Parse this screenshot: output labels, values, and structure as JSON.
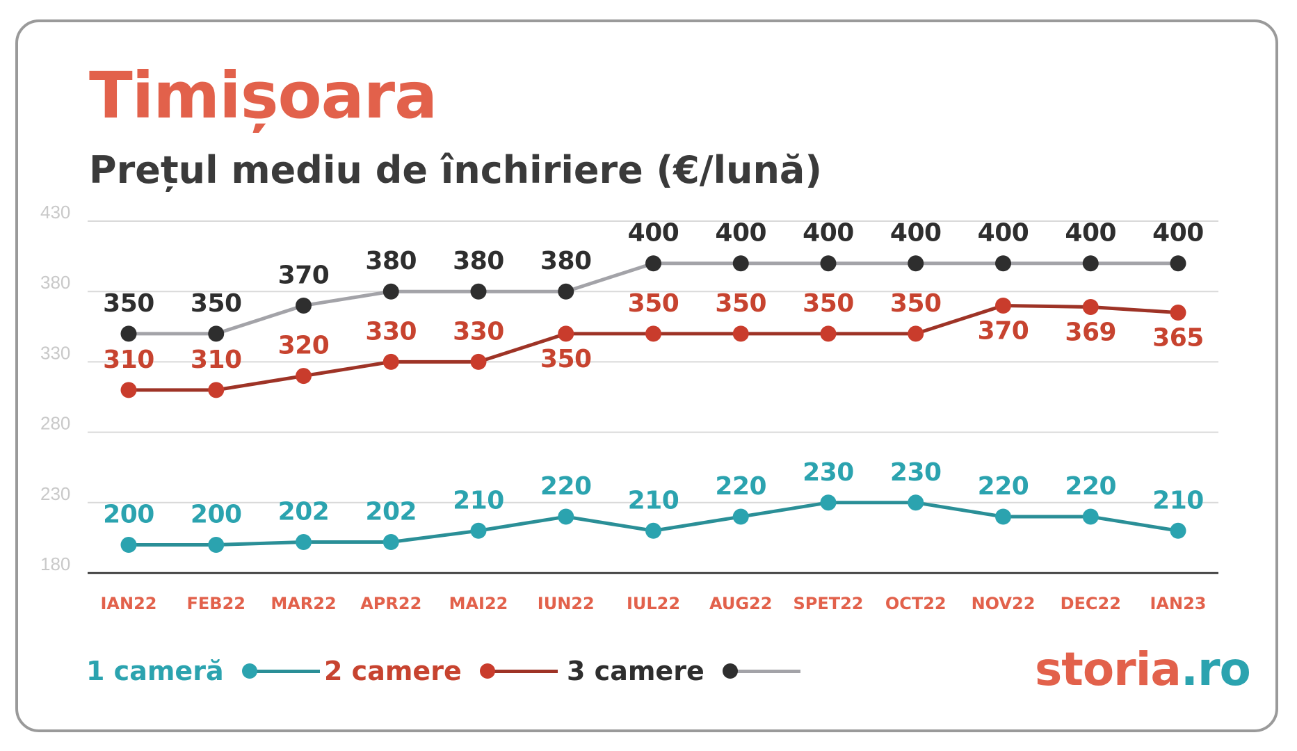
{
  "title": "Timișoara",
  "subtitle": "Prețul mediu de închiriere (€/lună)",
  "brand": {
    "part1": "storia",
    "part2": ".ro",
    "color1": "#e2614b",
    "color2": "#2ba3af"
  },
  "legend": [
    {
      "label": "1 cameră",
      "text_color": "#2ba3af",
      "line_color": "#2a8f97",
      "dot_color": "#2ba3af"
    },
    {
      "label": "2 camere",
      "text_color": "#c7432f",
      "line_color": "#9e3326",
      "dot_color": "#c93c2c"
    },
    {
      "label": "3 camere",
      "text_color": "#2e2e2e",
      "line_color": "#a3a3a8",
      "dot_color": "#2e2e2e"
    }
  ],
  "chart_data": {
    "type": "line",
    "categories": [
      "IAN22",
      "FEB22",
      "MAR22",
      "APR22",
      "MAI22",
      "IUN22",
      "IUL22",
      "AUG22",
      "SPET22",
      "OCT22",
      "NOV22",
      "DEC22",
      "IAN23"
    ],
    "yticks": [
      430,
      380,
      330,
      280,
      230,
      180
    ],
    "ylim": [
      180,
      430
    ],
    "grid": true,
    "legend_position": "bottom-left",
    "series": [
      {
        "name": "1 cameră",
        "line_color": "#2a8f97",
        "marker_color": "#2ba3af",
        "label_color": "#2ba3af",
        "label_position": "above",
        "values": [
          200,
          200,
          202,
          202,
          210,
          220,
          210,
          220,
          230,
          230,
          220,
          220,
          210
        ],
        "labels": [
          "200",
          "200",
          "202",
          "202",
          "210",
          "220",
          "210",
          "220",
          "230",
          "230",
          "220",
          "220",
          "210"
        ]
      },
      {
        "name": "2 camere",
        "line_color": "#9e3326",
        "marker_color": "#c93c2c",
        "label_color": "#c7432f",
        "values": [
          310,
          310,
          320,
          330,
          330,
          350,
          350,
          350,
          350,
          350,
          370,
          369,
          365
        ],
        "labels": [
          "310",
          "310",
          "320",
          "330",
          "330",
          "350",
          "350",
          "350",
          "350",
          "350",
          "370",
          "369",
          "365"
        ],
        "label_sides": [
          "above",
          "above",
          "above",
          "above",
          "above",
          "below",
          "above",
          "above",
          "above",
          "above",
          "below",
          "below",
          "below"
        ]
      },
      {
        "name": "3 camere",
        "line_color": "#a3a3a8",
        "marker_color": "#2e2e2e",
        "label_color": "#2e2e2e",
        "label_position": "above",
        "values": [
          350,
          350,
          370,
          380,
          380,
          380,
          400,
          400,
          400,
          400,
          400,
          400,
          400
        ],
        "labels": [
          "350",
          "350",
          "370",
          "380",
          "380",
          "380",
          "400",
          "400",
          "400",
          "400",
          "400",
          "400",
          "400"
        ]
      }
    ]
  }
}
